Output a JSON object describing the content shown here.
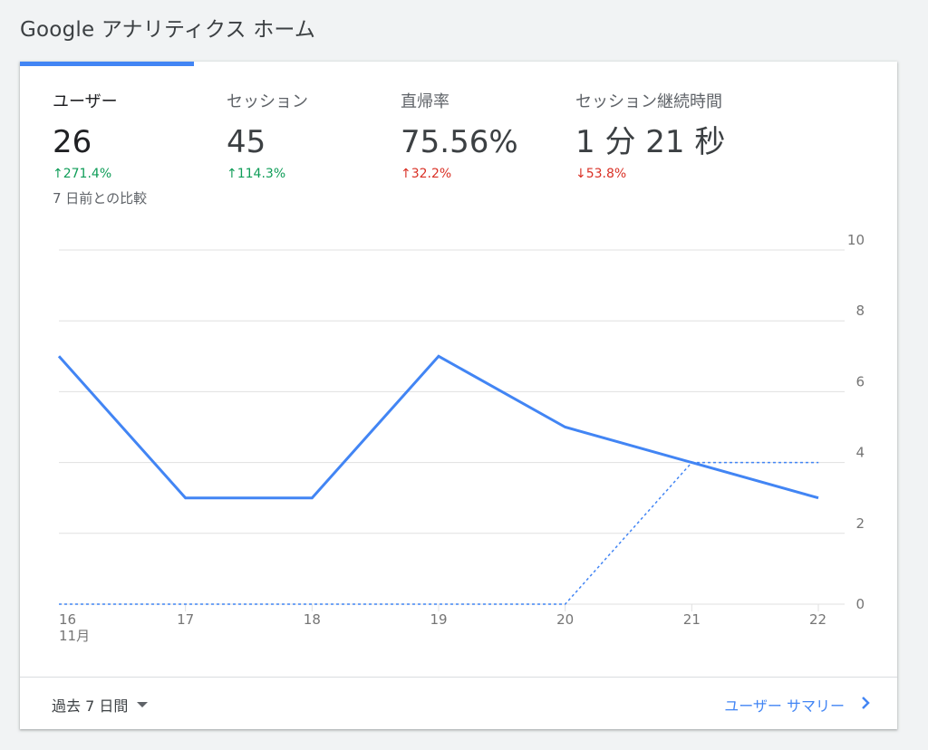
{
  "page": {
    "title": "Google アナリティクス ホーム"
  },
  "metrics": [
    {
      "label": "ユーザー",
      "value": "26",
      "change": "271.4%",
      "arrow": "↑"
    },
    {
      "label": "セッション",
      "value": "45",
      "change": "114.3%",
      "arrow": "↑"
    },
    {
      "label": "直帰率",
      "value": "75.56%",
      "change": "32.2%",
      "arrow": "↑"
    },
    {
      "label": "セッション継続時間",
      "value": "1 分 21 秒",
      "change": "53.8%",
      "arrow": "↓"
    }
  ],
  "compare_note": "7 日前との比較",
  "colors": {
    "accent": "#4285f4",
    "positive": "#0f9d58",
    "negative": "#d93025"
  },
  "chart_data": {
    "type": "line",
    "x": [
      "16",
      "17",
      "18",
      "19",
      "20",
      "21",
      "22"
    ],
    "x_sublabel": "11月",
    "series": [
      {
        "values": [
          7,
          3,
          3,
          7,
          5,
          4,
          3
        ],
        "style": "solid"
      },
      {
        "values": [
          0,
          0,
          0,
          0,
          0,
          4,
          4
        ],
        "style": "dashed"
      }
    ],
    "y_ticks": [
      "0",
      "2",
      "4",
      "6",
      "8",
      "10"
    ],
    "ylim": [
      0,
      10
    ],
    "grid": true
  },
  "footer": {
    "date_range": "過去 7 日間",
    "summary_link": "ユーザー サマリー"
  }
}
